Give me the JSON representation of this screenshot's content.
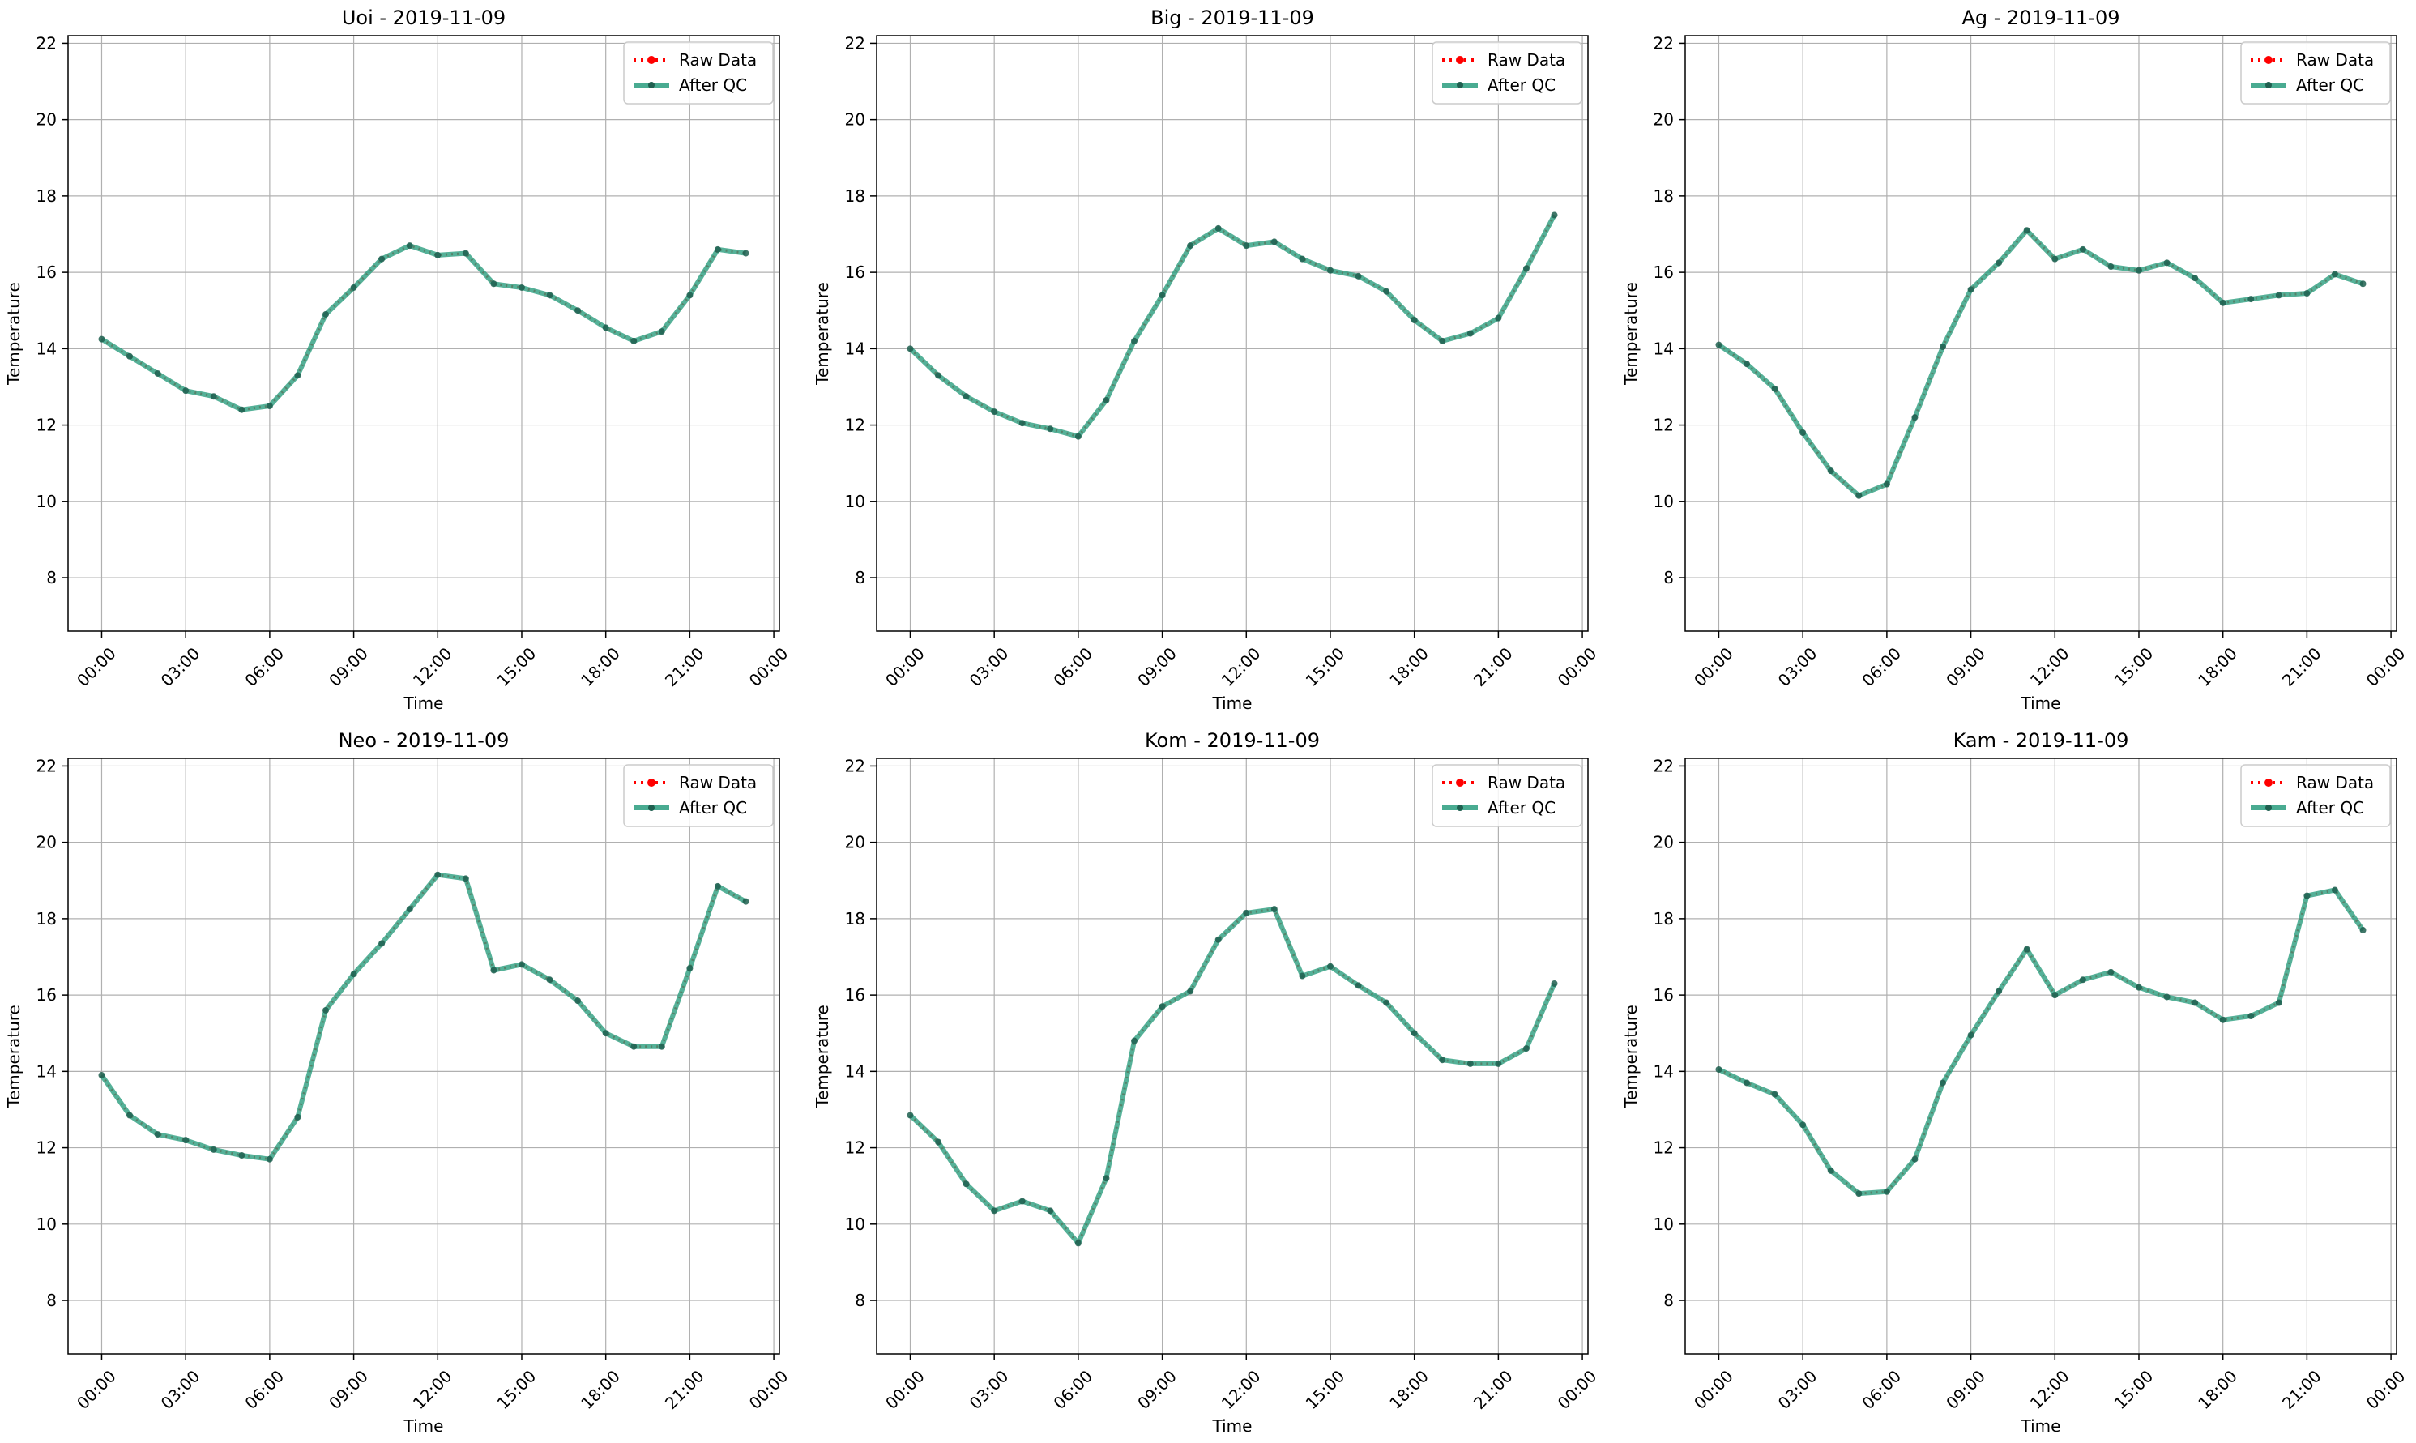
{
  "legend_labels": {
    "raw": "Raw Data",
    "qc": "After QC"
  },
  "colors": {
    "raw": "#ff0000",
    "qc": "#2a9d7e",
    "qc_marker": "#1f5f4f",
    "grid": "#b0b0b0"
  },
  "x_tick_labels": [
    "00:00",
    "03:00",
    "06:00",
    "09:00",
    "12:00",
    "15:00",
    "18:00",
    "21:00",
    "00:00"
  ],
  "y_tick_labels": [
    "8",
    "10",
    "12",
    "14",
    "16",
    "18",
    "20",
    "22"
  ],
  "chart_data": [
    {
      "type": "line",
      "title": "Uoi - 2019-11-09",
      "xlabel": "Time",
      "ylabel": "Temperature",
      "xlim": [
        -1.2,
        24.2
      ],
      "ylim": [
        6.6,
        22.2
      ],
      "grid": true,
      "legend": "top-right",
      "x": [
        0,
        1,
        2,
        3,
        4,
        5,
        6,
        7,
        8,
        9,
        10,
        11,
        12,
        13,
        14,
        15,
        16,
        17,
        18,
        19,
        20,
        21,
        22,
        23
      ],
      "series": [
        {
          "name": "Raw Data",
          "values": [
            14.25,
            13.8,
            13.35,
            12.9,
            12.75,
            12.4,
            12.5,
            13.3,
            14.9,
            15.6,
            16.35,
            16.7,
            16.45,
            16.5,
            15.7,
            15.6,
            15.4,
            15.0,
            14.55,
            14.2,
            14.45,
            15.4,
            16.6,
            16.5
          ]
        },
        {
          "name": "After QC",
          "values": [
            14.25,
            13.8,
            13.35,
            12.9,
            12.75,
            12.4,
            12.5,
            13.3,
            14.9,
            15.6,
            16.35,
            16.7,
            16.45,
            16.5,
            15.7,
            15.6,
            15.4,
            15.0,
            14.55,
            14.2,
            14.45,
            15.4,
            16.6,
            16.5
          ]
        }
      ]
    },
    {
      "type": "line",
      "title": "Big - 2019-11-09",
      "xlabel": "Time",
      "ylabel": "Temperature",
      "xlim": [
        -1.2,
        24.2
      ],
      "ylim": [
        6.6,
        22.2
      ],
      "grid": true,
      "legend": "top-right",
      "x": [
        0,
        1,
        2,
        3,
        4,
        5,
        6,
        7,
        8,
        9,
        10,
        11,
        12,
        13,
        14,
        15,
        16,
        17,
        18,
        19,
        20,
        21,
        22,
        23
      ],
      "series": [
        {
          "name": "Raw Data",
          "values": [
            14.0,
            13.3,
            12.75,
            12.35,
            12.05,
            11.9,
            11.7,
            12.65,
            14.2,
            15.4,
            16.7,
            17.15,
            16.7,
            16.8,
            16.35,
            16.05,
            15.9,
            15.5,
            14.75,
            14.2,
            14.4,
            14.8,
            16.1,
            17.5
          ]
        },
        {
          "name": "After QC",
          "values": [
            14.0,
            13.3,
            12.75,
            12.35,
            12.05,
            11.9,
            11.7,
            12.65,
            14.2,
            15.4,
            16.7,
            17.15,
            16.7,
            16.8,
            16.35,
            16.05,
            15.9,
            15.5,
            14.75,
            14.2,
            14.4,
            14.8,
            16.1,
            17.5
          ]
        }
      ]
    },
    {
      "type": "line",
      "title": "Ag - 2019-11-09",
      "xlabel": "Time",
      "ylabel": "Temperature",
      "xlim": [
        -1.2,
        24.2
      ],
      "ylim": [
        6.6,
        22.2
      ],
      "grid": true,
      "legend": "top-right",
      "x": [
        0,
        1,
        2,
        3,
        4,
        5,
        6,
        7,
        8,
        9,
        10,
        11,
        12,
        13,
        14,
        15,
        16,
        17,
        18,
        19,
        20,
        21,
        22,
        23
      ],
      "series": [
        {
          "name": "Raw Data",
          "values": [
            14.1,
            13.6,
            12.95,
            11.8,
            10.8,
            10.15,
            10.45,
            12.2,
            14.05,
            15.55,
            16.25,
            17.1,
            16.35,
            16.6,
            16.15,
            16.05,
            16.25,
            15.85,
            15.2,
            15.3,
            15.4,
            15.45,
            15.95,
            15.7
          ]
        },
        {
          "name": "After QC",
          "values": [
            14.1,
            13.6,
            12.95,
            11.8,
            10.8,
            10.15,
            10.45,
            12.2,
            14.05,
            15.55,
            16.25,
            17.1,
            16.35,
            16.6,
            16.15,
            16.05,
            16.25,
            15.85,
            15.2,
            15.3,
            15.4,
            15.45,
            15.95,
            15.7
          ]
        }
      ]
    },
    {
      "type": "line",
      "title": "Neo - 2019-11-09",
      "xlabel": "Time",
      "ylabel": "Temperature",
      "xlim": [
        -1.2,
        24.2
      ],
      "ylim": [
        6.6,
        22.2
      ],
      "grid": true,
      "legend": "top-right",
      "x": [
        0,
        1,
        2,
        3,
        4,
        5,
        6,
        7,
        8,
        9,
        10,
        11,
        12,
        13,
        14,
        15,
        16,
        17,
        18,
        19,
        20,
        21,
        22,
        23
      ],
      "series": [
        {
          "name": "Raw Data",
          "values": [
            13.9,
            12.85,
            12.35,
            12.2,
            11.95,
            11.8,
            11.7,
            12.8,
            15.6,
            16.55,
            17.35,
            18.25,
            19.15,
            19.05,
            16.65,
            16.8,
            16.4,
            15.85,
            15.0,
            14.65,
            14.65,
            16.7,
            18.85,
            18.45
          ]
        },
        {
          "name": "After QC",
          "values": [
            13.9,
            12.85,
            12.35,
            12.2,
            11.95,
            11.8,
            11.7,
            12.8,
            15.6,
            16.55,
            17.35,
            18.25,
            19.15,
            19.05,
            16.65,
            16.8,
            16.4,
            15.85,
            15.0,
            14.65,
            14.65,
            16.7,
            18.85,
            18.45
          ]
        }
      ]
    },
    {
      "type": "line",
      "title": "Kom - 2019-11-09",
      "xlabel": "Time",
      "ylabel": "Temperature",
      "xlim": [
        -1.2,
        24.2
      ],
      "ylim": [
        6.6,
        22.2
      ],
      "grid": true,
      "legend": "top-right",
      "x": [
        0,
        1,
        2,
        3,
        4,
        5,
        6,
        7,
        8,
        9,
        10,
        11,
        12,
        13,
        14,
        15,
        16,
        17,
        18,
        19,
        20,
        21,
        22,
        23
      ],
      "series": [
        {
          "name": "Raw Data",
          "values": [
            12.85,
            12.15,
            11.05,
            10.35,
            10.6,
            10.35,
            9.5,
            11.2,
            14.8,
            15.7,
            16.1,
            17.45,
            18.15,
            18.25,
            16.5,
            16.75,
            16.25,
            15.8,
            15.0,
            14.3,
            14.2,
            14.2,
            14.6,
            16.3
          ]
        },
        {
          "name": "After QC",
          "values": [
            12.85,
            12.15,
            11.05,
            10.35,
            10.6,
            10.35,
            9.5,
            11.2,
            14.8,
            15.7,
            16.1,
            17.45,
            18.15,
            18.25,
            16.5,
            16.75,
            16.25,
            15.8,
            15.0,
            14.3,
            14.2,
            14.2,
            14.6,
            16.3
          ]
        }
      ]
    },
    {
      "type": "line",
      "title": "Kam - 2019-11-09",
      "xlabel": "Time",
      "ylabel": "Temperature",
      "xlim": [
        -1.2,
        24.2
      ],
      "ylim": [
        6.6,
        22.2
      ],
      "grid": true,
      "legend": "top-right",
      "x": [
        0,
        1,
        2,
        3,
        4,
        5,
        6,
        7,
        8,
        9,
        10,
        11,
        12,
        13,
        14,
        15,
        16,
        17,
        18,
        19,
        20,
        21,
        22,
        23
      ],
      "series": [
        {
          "name": "Raw Data",
          "values": [
            14.05,
            13.7,
            13.4,
            12.6,
            11.4,
            10.8,
            10.85,
            11.7,
            13.7,
            14.95,
            16.1,
            17.2,
            16.0,
            16.4,
            16.6,
            16.2,
            15.95,
            15.8,
            15.35,
            15.45,
            15.8,
            18.6,
            18.75,
            17.7
          ]
        },
        {
          "name": "After QC",
          "values": [
            14.05,
            13.7,
            13.4,
            12.6,
            11.4,
            10.8,
            10.85,
            11.7,
            13.7,
            14.95,
            16.1,
            17.2,
            16.0,
            16.4,
            16.6,
            16.2,
            15.95,
            15.8,
            15.35,
            15.45,
            15.8,
            18.6,
            18.75,
            17.7
          ]
        }
      ]
    }
  ]
}
